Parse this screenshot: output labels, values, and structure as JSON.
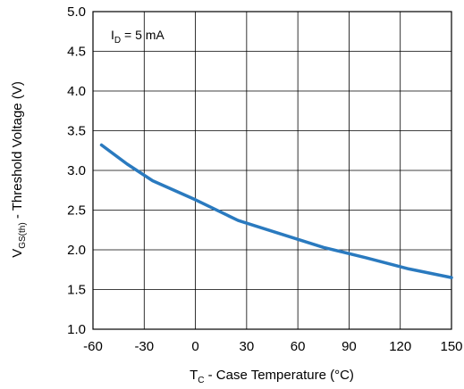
{
  "chart_data": {
    "type": "line",
    "xlabel": {
      "main": "T",
      "sub": "C",
      "rest": " - Case Temperature (°C)"
    },
    "ylabel": {
      "main": "V",
      "sub": "GS(th)",
      "rest": " - Threshold Voltage (V)"
    },
    "annotation": {
      "main": "I",
      "sub": "D",
      "rest": " = 5 mA"
    },
    "xlim": [
      -60,
      150
    ],
    "ylim": [
      1.0,
      5.0
    ],
    "xticks": [
      "-60",
      "-30",
      "0",
      "30",
      "60",
      "90",
      "120",
      "150"
    ],
    "yticks": [
      "1.0",
      "1.5",
      "2.0",
      "2.5",
      "3.0",
      "3.5",
      "4.0",
      "4.5",
      "5.0"
    ],
    "grid": true,
    "series": [
      {
        "color": "#2a7abf",
        "x": [
          -55,
          -40,
          -25,
          0,
          25,
          50,
          75,
          100,
          125,
          150
        ],
        "y": [
          3.32,
          3.08,
          2.87,
          2.63,
          2.37,
          2.2,
          2.03,
          1.9,
          1.76,
          1.65
        ]
      }
    ]
  }
}
